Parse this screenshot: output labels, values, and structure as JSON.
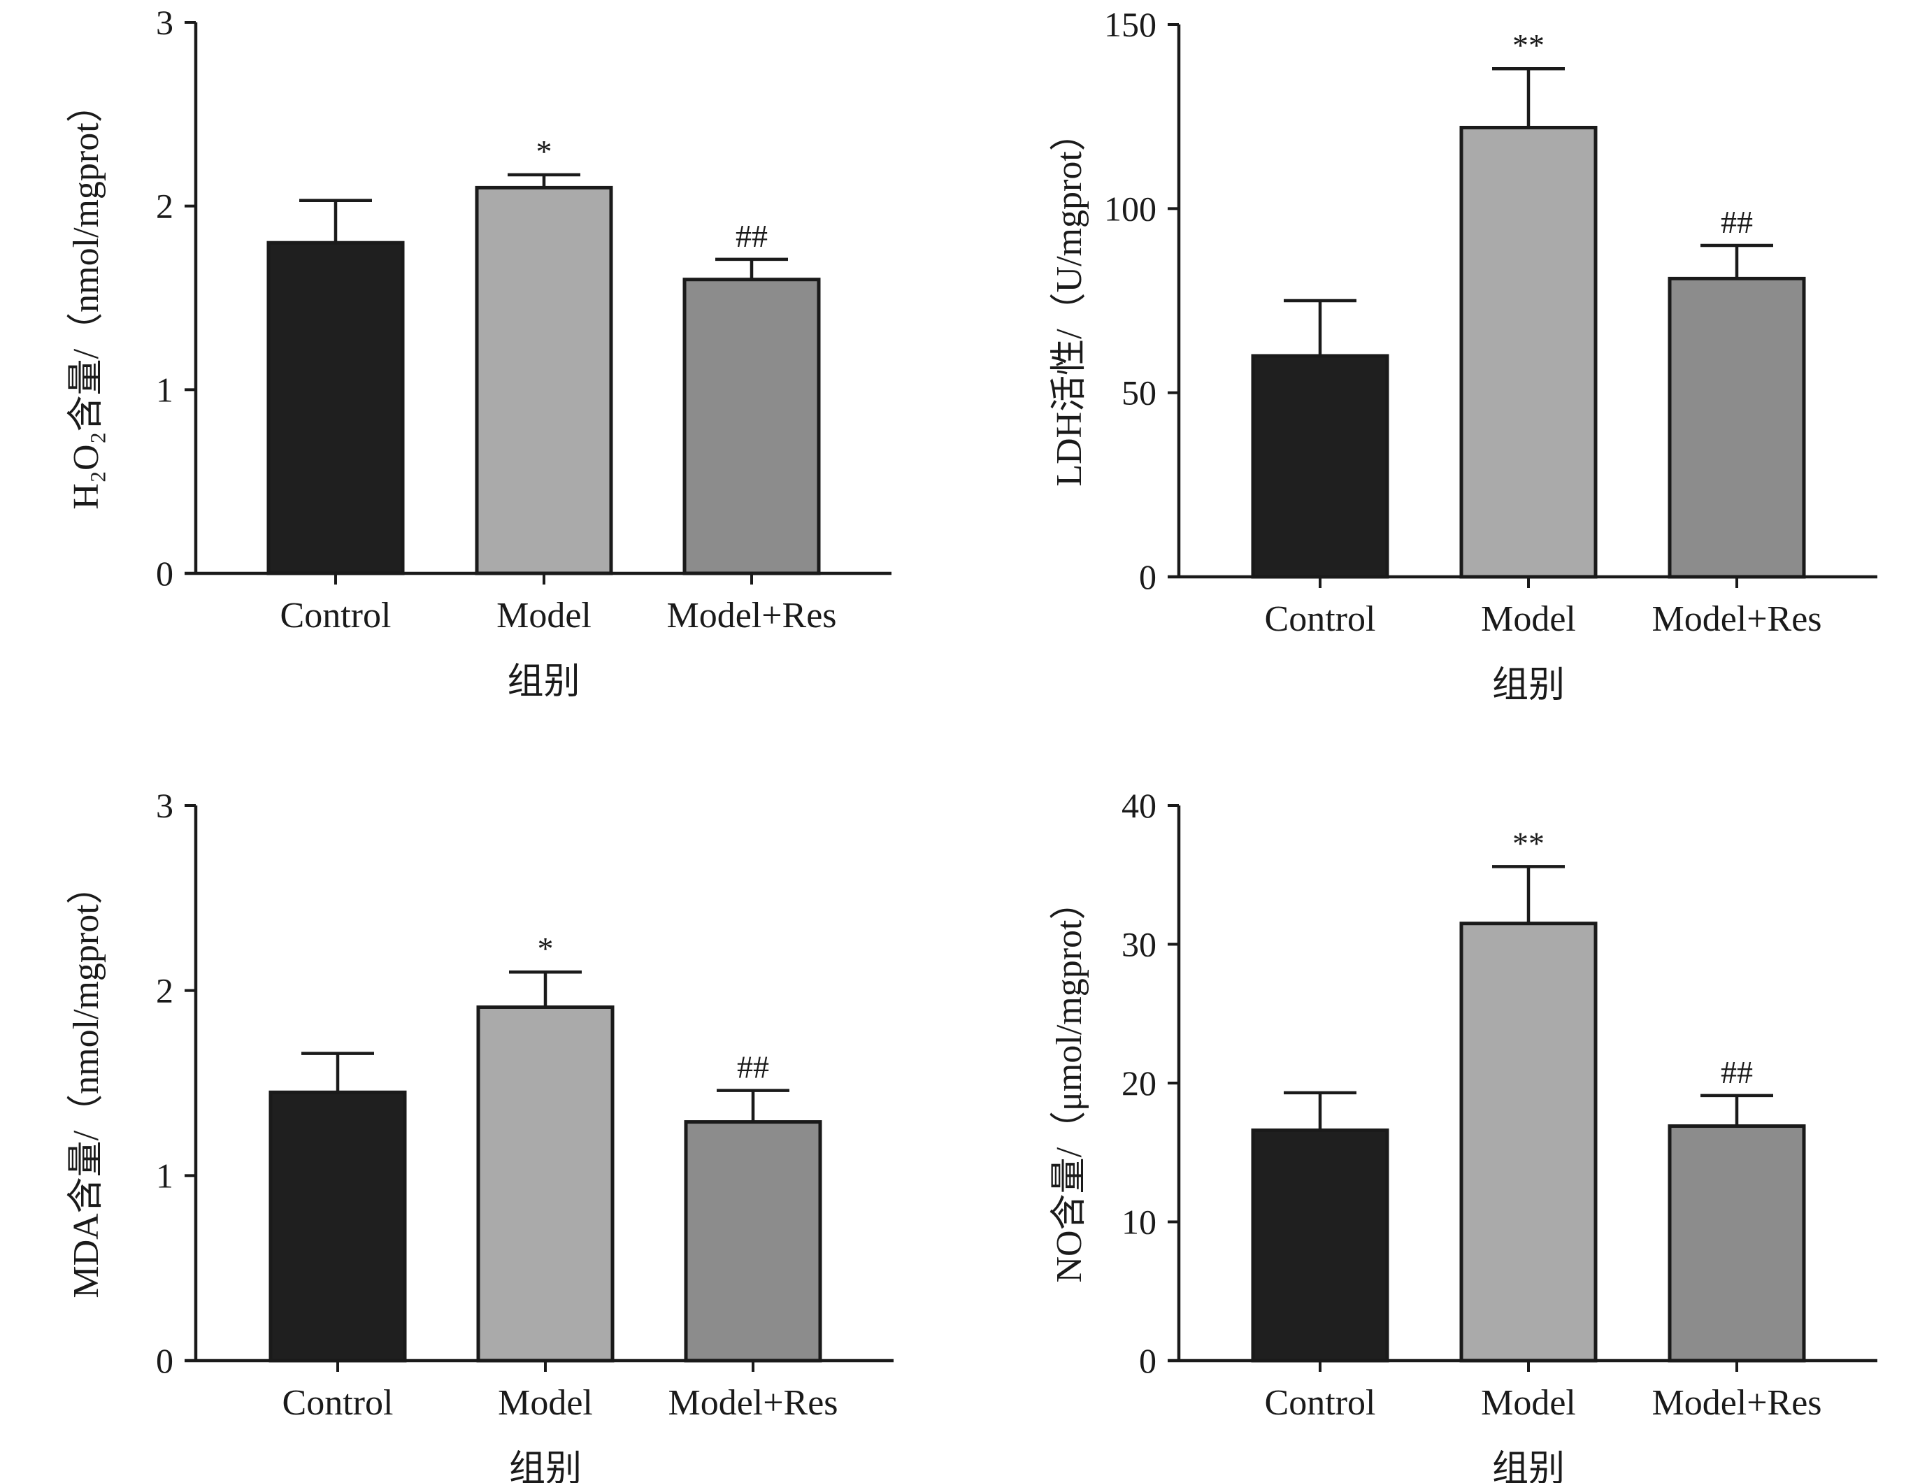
{
  "colors": {
    "control": "#1f1f1f",
    "model": "#aaaaaa",
    "model_res": "#8c8c8c",
    "axis": "#1a1a1a"
  },
  "chart_data": [
    {
      "type": "bar",
      "xlabel": "组别",
      "ylabel": "H₂O₂含量/（nmol/mgprot）",
      "ylim": [
        0,
        3
      ],
      "yticks": [
        0,
        1,
        2,
        3
      ],
      "categories": [
        "Control",
        "Model",
        "Model+Res"
      ],
      "values": [
        1.8,
        2.1,
        1.6
      ],
      "errors": [
        0.23,
        0.07,
        0.11
      ],
      "significance": [
        "",
        "*",
        "##"
      ]
    },
    {
      "type": "bar",
      "xlabel": "组别",
      "ylabel": "LDH活性/（U/mgprot）",
      "ylim": [
        0,
        150
      ],
      "yticks": [
        0,
        50,
        100,
        150
      ],
      "categories": [
        "Control",
        "Model",
        "Model+Res"
      ],
      "values": [
        60,
        122,
        81
      ],
      "errors": [
        15,
        16,
        9
      ],
      "significance": [
        "",
        "**",
        "##"
      ]
    },
    {
      "type": "bar",
      "xlabel": "组别",
      "ylabel": "MDA含量/（nmol/mgprot）",
      "ylim": [
        0,
        3
      ],
      "yticks": [
        0,
        1,
        2,
        3
      ],
      "categories": [
        "Control",
        "Model",
        "Model+Res"
      ],
      "values": [
        1.45,
        1.91,
        1.29
      ],
      "errors": [
        0.21,
        0.19,
        0.17
      ],
      "significance": [
        "",
        "*",
        "##"
      ]
    },
    {
      "type": "bar",
      "xlabel": "组别",
      "ylabel": "NO含量/（μmol/mgprot）",
      "ylim": [
        0,
        40
      ],
      "yticks": [
        0,
        10,
        20,
        30,
        40
      ],
      "categories": [
        "Control",
        "Model",
        "Model+Res"
      ],
      "values": [
        16.6,
        31.5,
        16.9
      ],
      "errors": [
        2.7,
        4.1,
        2.2
      ],
      "significance": [
        "",
        "**",
        "##"
      ]
    }
  ]
}
